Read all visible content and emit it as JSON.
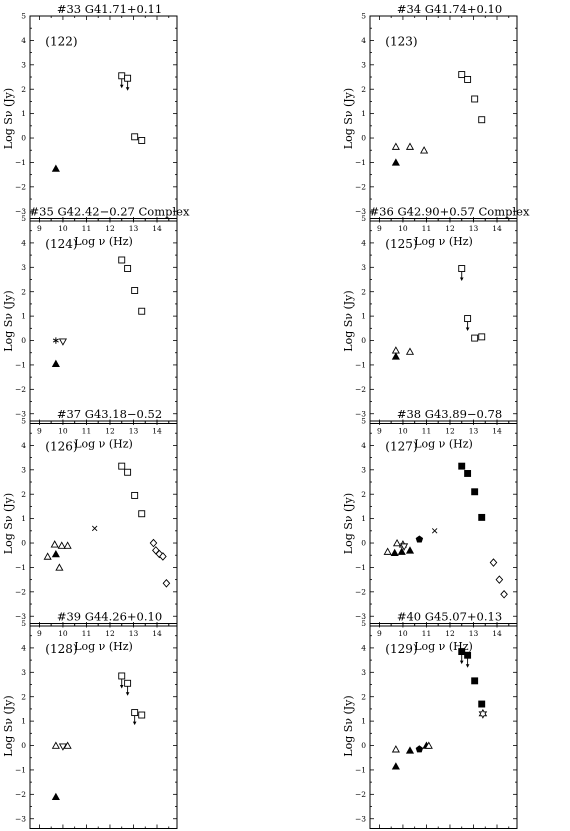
{
  "labels": {
    "xlabel": "Log ν (Hz)",
    "ylabel": "Log Sν (Jy)"
  },
  "axes": {
    "xlim": [
      8.6,
      14.85
    ],
    "ylim": [
      -3.4,
      5
    ],
    "xticks": [
      9,
      10,
      11,
      12,
      13,
      14
    ],
    "yticks": [
      -3,
      -2,
      -1,
      0,
      1,
      2,
      3,
      4,
      5
    ]
  },
  "chart_data": [
    {
      "type": "scatter",
      "title": "#33   G41.71+0.11",
      "number": "(122)",
      "points": [
        {
          "x": 9.7,
          "y": -1.25,
          "m": "tri-filled"
        },
        {
          "x": 12.5,
          "y": 2.55,
          "m": "square-open",
          "ul": true
        },
        {
          "x": 12.75,
          "y": 2.45,
          "m": "square-open",
          "ul": true
        },
        {
          "x": 13.05,
          "y": 0.05,
          "m": "square-open"
        },
        {
          "x": 13.35,
          "y": -0.1,
          "m": "square-open"
        }
      ]
    },
    {
      "type": "scatter",
      "title": "#34   G41.74+0.10",
      "number": "(123)",
      "points": [
        {
          "x": 9.7,
          "y": -0.35,
          "m": "tri-open"
        },
        {
          "x": 9.7,
          "y": -1.0,
          "m": "tri-filled"
        },
        {
          "x": 10.3,
          "y": -0.35,
          "m": "tri-open"
        },
        {
          "x": 10.9,
          "y": -0.5,
          "m": "tri-open"
        },
        {
          "x": 12.5,
          "y": 2.6,
          "m": "square-open"
        },
        {
          "x": 12.75,
          "y": 2.4,
          "m": "square-open"
        },
        {
          "x": 13.05,
          "y": 1.6,
          "m": "square-open"
        },
        {
          "x": 13.35,
          "y": 0.75,
          "m": "square-open"
        }
      ]
    },
    {
      "type": "scatter",
      "title": "#35   G42.42−0.27  Complex",
      "number": "(124)",
      "points": [
        {
          "x": 9.7,
          "y": 0.0,
          "m": "star"
        },
        {
          "x": 10.0,
          "y": -0.05,
          "m": "tri-down-open"
        },
        {
          "x": 9.7,
          "y": -0.95,
          "m": "tri-filled"
        },
        {
          "x": 12.5,
          "y": 3.3,
          "m": "square-open"
        },
        {
          "x": 12.75,
          "y": 2.95,
          "m": "square-open"
        },
        {
          "x": 13.05,
          "y": 2.05,
          "m": "square-open"
        },
        {
          "x": 13.35,
          "y": 1.2,
          "m": "square-open"
        }
      ]
    },
    {
      "type": "scatter",
      "title": "#36   G42.90+0.57  Complex",
      "number": "(125)",
      "points": [
        {
          "x": 9.7,
          "y": -0.4,
          "m": "tri-open"
        },
        {
          "x": 9.7,
          "y": -0.65,
          "m": "tri-filled"
        },
        {
          "x": 10.3,
          "y": -0.45,
          "m": "tri-open"
        },
        {
          "x": 12.5,
          "y": 2.95,
          "m": "square-open",
          "ul": true
        },
        {
          "x": 12.75,
          "y": 0.9,
          "m": "square-open",
          "ul": true
        },
        {
          "x": 13.05,
          "y": 0.1,
          "m": "square-open"
        },
        {
          "x": 13.35,
          "y": 0.15,
          "m": "square-open"
        }
      ]
    },
    {
      "type": "scatter",
      "title": "#37   G43.18−0.52",
      "number": "(126)",
      "points": [
        {
          "x": 9.35,
          "y": -0.55,
          "m": "tri-open"
        },
        {
          "x": 9.65,
          "y": -0.05,
          "m": "tri-open"
        },
        {
          "x": 9.7,
          "y": -0.45,
          "m": "tri-filled"
        },
        {
          "x": 9.85,
          "y": -1.0,
          "m": "tri-open"
        },
        {
          "x": 9.95,
          "y": -0.1,
          "m": "tri-open"
        },
        {
          "x": 10.2,
          "y": -0.1,
          "m": "tri-open"
        },
        {
          "x": 11.35,
          "y": 0.6,
          "m": "cross"
        },
        {
          "x": 12.5,
          "y": 3.15,
          "m": "square-open"
        },
        {
          "x": 12.75,
          "y": 2.9,
          "m": "square-open"
        },
        {
          "x": 13.05,
          "y": 1.95,
          "m": "square-open"
        },
        {
          "x": 13.35,
          "y": 1.2,
          "m": "square-open"
        },
        {
          "x": 13.85,
          "y": 0.0,
          "m": "diamond-open"
        },
        {
          "x": 13.95,
          "y": -0.3,
          "m": "diamond-open"
        },
        {
          "x": 14.1,
          "y": -0.45,
          "m": "diamond-open"
        },
        {
          "x": 14.25,
          "y": -0.55,
          "m": "diamond-open"
        },
        {
          "x": 14.4,
          "y": -1.65,
          "m": "diamond-open"
        }
      ]
    },
    {
      "type": "scatter",
      "title": "#38   G43.89−0.78",
      "number": "(127)",
      "points": [
        {
          "x": 9.35,
          "y": -0.35,
          "m": "tri-open"
        },
        {
          "x": 9.65,
          "y": -0.4,
          "m": "tri-filled"
        },
        {
          "x": 9.75,
          "y": 0.0,
          "m": "tri-open"
        },
        {
          "x": 9.95,
          "y": -0.35,
          "m": "tri-filled"
        },
        {
          "x": 10.0,
          "y": -0.05,
          "m": "tri-open"
        },
        {
          "x": 10.05,
          "y": -0.15,
          "m": "tri-down-open"
        },
        {
          "x": 10.3,
          "y": -0.3,
          "m": "tri-filled"
        },
        {
          "x": 10.7,
          "y": 0.15,
          "m": "pentagon-filled"
        },
        {
          "x": 11.35,
          "y": 0.5,
          "m": "cross"
        },
        {
          "x": 12.5,
          "y": 3.15,
          "m": "square-filled"
        },
        {
          "x": 12.75,
          "y": 2.85,
          "m": "square-filled"
        },
        {
          "x": 13.05,
          "y": 2.1,
          "m": "square-filled"
        },
        {
          "x": 13.35,
          "y": 1.05,
          "m": "square-filled"
        },
        {
          "x": 13.85,
          "y": -0.8,
          "m": "diamond-open"
        },
        {
          "x": 14.1,
          "y": -1.5,
          "m": "diamond-open"
        },
        {
          "x": 14.3,
          "y": -2.1,
          "m": "diamond-open"
        }
      ]
    },
    {
      "type": "scatter",
      "title": "#39   G44.26+0.10",
      "number": "(128)",
      "points": [
        {
          "x": 9.7,
          "y": 0.0,
          "m": "tri-open"
        },
        {
          "x": 10.0,
          "y": -0.05,
          "m": "tri-down-open"
        },
        {
          "x": 10.2,
          "y": 0.0,
          "m": "tri-open"
        },
        {
          "x": 9.7,
          "y": -2.1,
          "m": "tri-filled"
        },
        {
          "x": 12.5,
          "y": 2.85,
          "m": "square-open",
          "ul": true
        },
        {
          "x": 12.75,
          "y": 2.55,
          "m": "square-open",
          "ul": true
        },
        {
          "x": 13.05,
          "y": 1.35,
          "m": "square-open",
          "ul": true
        },
        {
          "x": 13.35,
          "y": 1.25,
          "m": "square-open"
        }
      ]
    },
    {
      "type": "scatter",
      "title": "#40   G45.07+0.13",
      "number": "(129)",
      "points": [
        {
          "x": 9.7,
          "y": -0.15,
          "m": "tri-open"
        },
        {
          "x": 9.7,
          "y": -0.85,
          "m": "tri-filled"
        },
        {
          "x": 10.3,
          "y": -0.2,
          "m": "tri-filled"
        },
        {
          "x": 10.7,
          "y": -0.15,
          "m": "pentagon-filled"
        },
        {
          "x": 11.0,
          "y": 0.0,
          "m": "tri-filled"
        },
        {
          "x": 11.1,
          "y": 0.0,
          "m": "tri-open"
        },
        {
          "x": 12.5,
          "y": 3.85,
          "m": "square-filled",
          "ul": true
        },
        {
          "x": 12.75,
          "y": 3.7,
          "m": "square-filled",
          "ul": true
        },
        {
          "x": 13.05,
          "y": 2.65,
          "m": "square-filled"
        },
        {
          "x": 13.35,
          "y": 1.7,
          "m": "square-filled"
        },
        {
          "x": 13.4,
          "y": 1.3,
          "m": "star-open"
        }
      ]
    }
  ]
}
